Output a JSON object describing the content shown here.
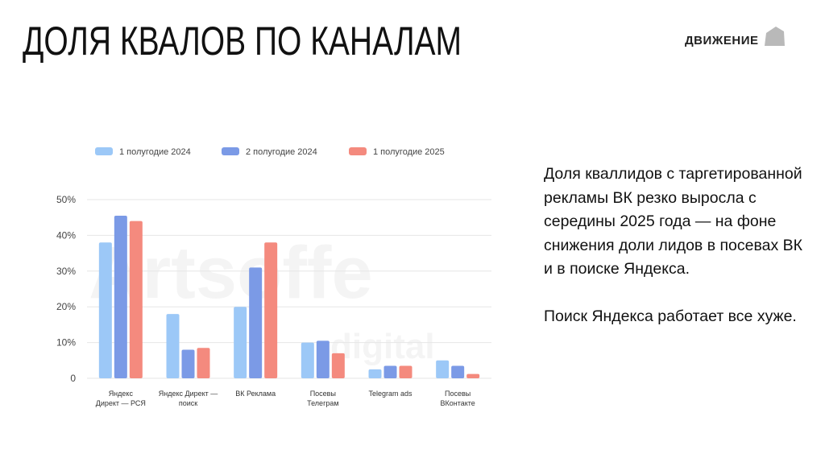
{
  "slide": {
    "title": "ДОЛЯ КВАЛОВ ПО КАНАЛАМ",
    "logo_text": "ДВИЖЕНИЕ",
    "logo_icon": "house-shape-icon",
    "note_paragraphs": [
      "Доля кваллидов с таргетированной рекламы ВК резко выросла с середины 2025 года — на фоне снижения доли лидов в посевах ВК и в поиске Яндекса.",
      "Поиск Яндекса работает все хуже."
    ]
  },
  "chart_data": {
    "type": "bar",
    "title": "",
    "xlabel": "",
    "ylabel": "",
    "ylim": [
      0,
      50
    ],
    "y_ticks": [
      "0",
      "10%",
      "20%",
      "30%",
      "40%",
      "50%"
    ],
    "y_tick_values": [
      0,
      10,
      20,
      30,
      40,
      50
    ],
    "grid": true,
    "legend_position": "top",
    "categories": [
      [
        "Яндекс",
        "Директ — РСЯ"
      ],
      [
        "Яндекс Директ —",
        "поиск"
      ],
      [
        "ВК Реклама"
      ],
      [
        "Посевы",
        "Телеграм"
      ],
      [
        "Telegram ads"
      ],
      [
        "Посевы",
        "ВКонтакте"
      ]
    ],
    "series": [
      {
        "name": "1 полугодие 2024",
        "color": "#9cc8f7",
        "values": [
          38,
          18,
          20,
          10,
          2.5,
          5
        ]
      },
      {
        "name": "2 полугодие 2024",
        "color": "#7b9ae6",
        "values": [
          45.5,
          8,
          31,
          10.5,
          3.5,
          3.5
        ]
      },
      {
        "name": "1 полугодие 2025",
        "color": "#f48a7e",
        "values": [
          44,
          8.5,
          38,
          7,
          3.5,
          1.2
        ]
      }
    ],
    "watermark": [
      "Artsoffe",
      "digital"
    ]
  }
}
